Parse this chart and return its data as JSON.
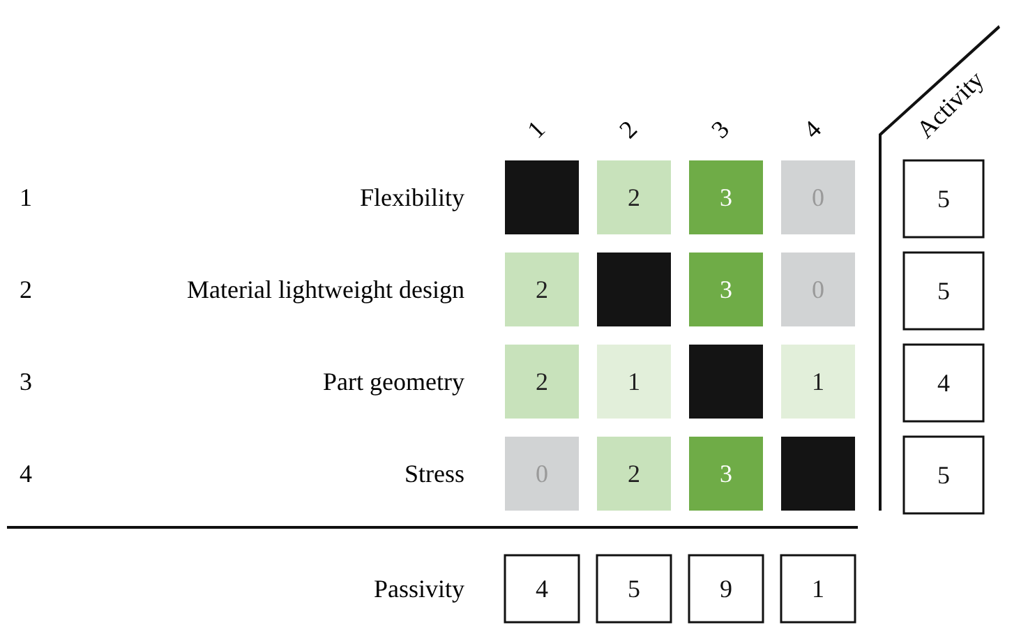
{
  "chart_data": {
    "type": "heatmap",
    "categories": [
      "1",
      "2",
      "3",
      "4",
      "Activity"
    ],
    "y_categories": [
      "Flexibility",
      "Material lightweight design",
      "Part geometry",
      "Stress",
      "Passivity"
    ],
    "y2_categories": [
      "1",
      "2",
      "3",
      "4",
      null
    ],
    "cells": [
      [
        null,
        2,
        3,
        0,
        5
      ],
      [
        2,
        null,
        3,
        0,
        5
      ],
      [
        2,
        1,
        null,
        1,
        4
      ],
      [
        0,
        2,
        3,
        null,
        5
      ],
      [
        4,
        5,
        9,
        1,
        null
      ]
    ],
    "colors": [
      "#d1d3d4",
      "#e2efda",
      "#c8e2bb",
      "#6fac47"
    ],
    "data_labels": true
  }
}
